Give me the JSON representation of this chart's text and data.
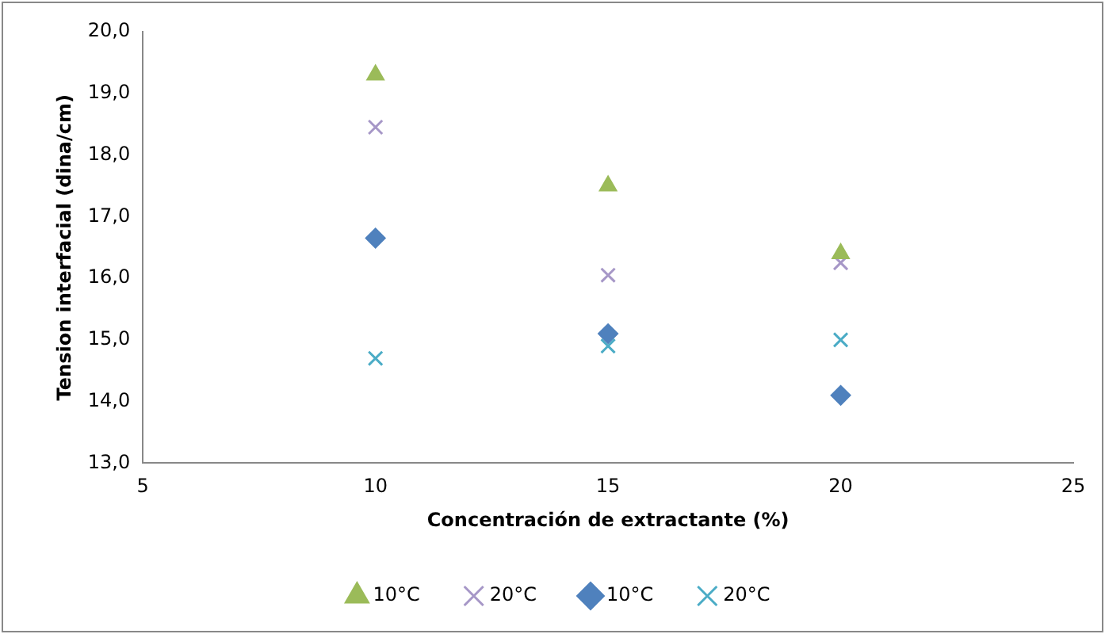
{
  "chart_data": {
    "type": "scatter",
    "xlabel": "Concentración de extractante (%)",
    "ylabel": "Tension interfacial (dina/cm)",
    "xlim": [
      5,
      25
    ],
    "xticks": [
      5,
      10,
      15,
      20,
      25
    ],
    "ylim": [
      13,
      20
    ],
    "yticks": [
      {
        "value": 13,
        "label": "13,0"
      },
      {
        "value": 14,
        "label": "14,0"
      },
      {
        "value": 15,
        "label": "15,0"
      },
      {
        "value": 16,
        "label": "16,0"
      },
      {
        "value": 17,
        "label": "17,0"
      },
      {
        "value": 18,
        "label": "18,0"
      },
      {
        "value": 19,
        "label": "19,0"
      },
      {
        "value": 20,
        "label": "20,0"
      }
    ],
    "grid": false,
    "legend": "bottom",
    "series": [
      {
        "name": "10°C",
        "color": "#9bbb59",
        "marker": "triangle",
        "x": [
          10,
          15,
          20
        ],
        "values": [
          19.3,
          17.5,
          16.4
        ]
      },
      {
        "name": "20°C",
        "color": "#a697c7",
        "marker": "cross",
        "x": [
          10,
          15,
          20
        ],
        "values": [
          18.45,
          16.05,
          16.25
        ]
      },
      {
        "name": "10°C",
        "color": "#4f81bd",
        "marker": "diamond",
        "x": [
          10,
          15,
          20
        ],
        "values": [
          16.65,
          15.1,
          14.1
        ]
      },
      {
        "name": "20°C",
        "color": "#4bacc6",
        "marker": "cross",
        "x": [
          10,
          15,
          20
        ],
        "values": [
          14.7,
          14.9,
          15.0
        ]
      }
    ]
  }
}
